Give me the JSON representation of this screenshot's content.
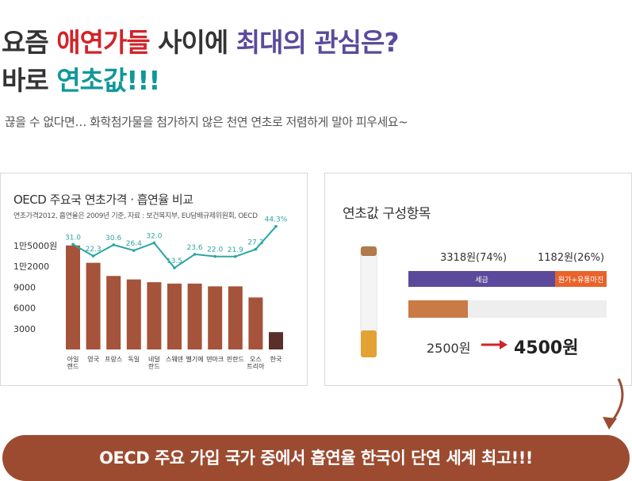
{
  "headline": {
    "line1": {
      "part1": "요즘 ",
      "part2": "애연가들",
      "part3": " 사이에 ",
      "part4": "최대의 관심은?"
    },
    "line2": {
      "part1": "바로 ",
      "part2": "연초값!!!"
    }
  },
  "subline": "끊을 수 없다면… 화학첨가물을 첨가하지 않은 천연 연초로 저렴하게 말아 피우세요~",
  "left_panel": {
    "title": "OECD 주요국 연초가격 · 흡연율 비교",
    "note": "연초가격2012, 흡연율은 2009년 기준, 자료 : 보건복지부, EU담배규제위원회, OECD"
  },
  "right_panel": {
    "title": "연초값 구성항목",
    "tax_label": "세금",
    "margin_label": "원가+유통마진",
    "tax_amount": "3318원(74%)",
    "margin_amount": "1182원(26%)",
    "price_before": "2500원",
    "price_after": "4500원",
    "tax_fraction": 0.74,
    "old_price_fraction": 0.3,
    "colors": {
      "tax": "#5b4a9b",
      "margin": "#e8632b",
      "arrow": "#d2232a"
    }
  },
  "banner": {
    "text": "OECD 주요 가입 국가 중에서 흡연율 한국이 단연 세계 최고!!!"
  },
  "chart_data": {
    "type": "bar",
    "categories": [
      "아일랜드",
      "영국",
      "프랑스",
      "독일",
      "네덜란드",
      "스웨덴",
      "벨기에",
      "덴마크",
      "핀란드",
      "오스트리아",
      "한국"
    ],
    "category_lines": [
      [
        "아일",
        "랜드"
      ],
      [
        "영국"
      ],
      [
        "프랑스"
      ],
      [
        "독일"
      ],
      [
        "네덜",
        "란드"
      ],
      [
        "스웨덴"
      ],
      [
        "벨기에"
      ],
      [
        "덴마크"
      ],
      [
        "핀란드"
      ],
      [
        "오스",
        "트리아"
      ],
      [
        "한국"
      ]
    ],
    "series": [
      {
        "type": "bar",
        "values": [
          15000,
          12500,
          10600,
          10100,
          9700,
          9500,
          9500,
          9100,
          9100,
          7500,
          2500
        ]
      },
      {
        "type": "line",
        "values": [
          31.0,
          22.3,
          30.6,
          26.4,
          32.0,
          13.5,
          23.6,
          22.0,
          21.9,
          27.3,
          44.3
        ],
        "labels": [
          "31.0",
          "22.3",
          "30.6",
          "26.4",
          "32.0",
          "13.5",
          "23.6",
          "22.0",
          "21.9",
          "27.3",
          "44.3%"
        ]
      }
    ],
    "y_ticks": [
      3000,
      6000,
      9000,
      12000,
      15000
    ],
    "y_tick_labels": [
      "3000",
      "6000",
      "9000",
      "1만2000",
      "1만5000원"
    ],
    "ylim": [
      0,
      16000
    ],
    "line_ylim": [
      0,
      50
    ],
    "grid": false,
    "colors": {
      "bar": "#a5533a",
      "highlight_bar": "#5a2f2a",
      "line": "#2aa6a2"
    }
  }
}
